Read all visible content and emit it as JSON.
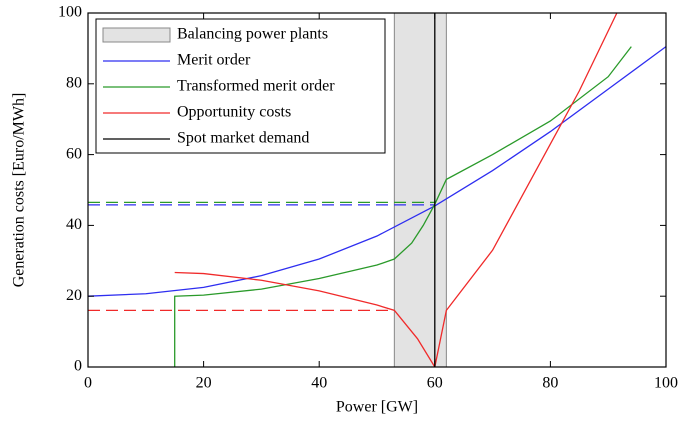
{
  "chart_data": {
    "type": "line",
    "xlabel": "Power [GW]",
    "ylabel": "Generation costs [Euro/MWh]",
    "xlim": [
      0,
      100
    ],
    "ylim": [
      0,
      100
    ],
    "xticks": [
      0,
      20,
      40,
      60,
      80,
      100
    ],
    "yticks": [
      0,
      20,
      40,
      60,
      80,
      100
    ],
    "grid": false,
    "legend": "upper left",
    "span": {
      "name": "Balancing power plants",
      "color": "#e3e3e3",
      "x": [
        53,
        62
      ]
    },
    "series": [
      {
        "name": "Merit order",
        "color": "#2e2ef0",
        "x": [
          0,
          10,
          20,
          30,
          40,
          50,
          60,
          70,
          80,
          90,
          100
        ],
        "values": [
          20,
          20.7,
          22.5,
          25.8,
          30.5,
          37,
          45.5,
          55.5,
          66.5,
          78.5,
          90.5
        ]
      },
      {
        "name": "Transformed merit order",
        "color": "#2a9a2a",
        "x": [
          15,
          15,
          20,
          30,
          40,
          50,
          53,
          56,
          58,
          60,
          62,
          70,
          80,
          90,
          94
        ],
        "values": [
          0,
          20,
          20.3,
          22,
          25,
          28.8,
          30.5,
          35,
          40,
          46,
          53,
          60,
          69.5,
          82,
          90.5
        ]
      },
      {
        "name": "Opportunity costs",
        "color": "#f02a2a",
        "x": [
          15,
          20,
          30,
          40,
          50,
          53,
          57,
          60,
          62,
          70,
          80,
          85,
          91.5
        ],
        "values": [
          26.7,
          26.4,
          24.5,
          21.5,
          17.5,
          16,
          8,
          0,
          16,
          33,
          63,
          78,
          100
        ]
      },
      {
        "name": "Spot market demand",
        "color": "#000000",
        "x": [
          60,
          60
        ],
        "values": [
          0,
          100
        ]
      }
    ],
    "hlines": [
      {
        "y": 46.5,
        "x": [
          0,
          60
        ],
        "color": "#2a9a2a"
      },
      {
        "y": 45.8,
        "x": [
          0,
          60
        ],
        "color": "#2e2ef0"
      },
      {
        "y": 16,
        "x": [
          0,
          53
        ],
        "color": "#f02a2a"
      }
    ]
  }
}
